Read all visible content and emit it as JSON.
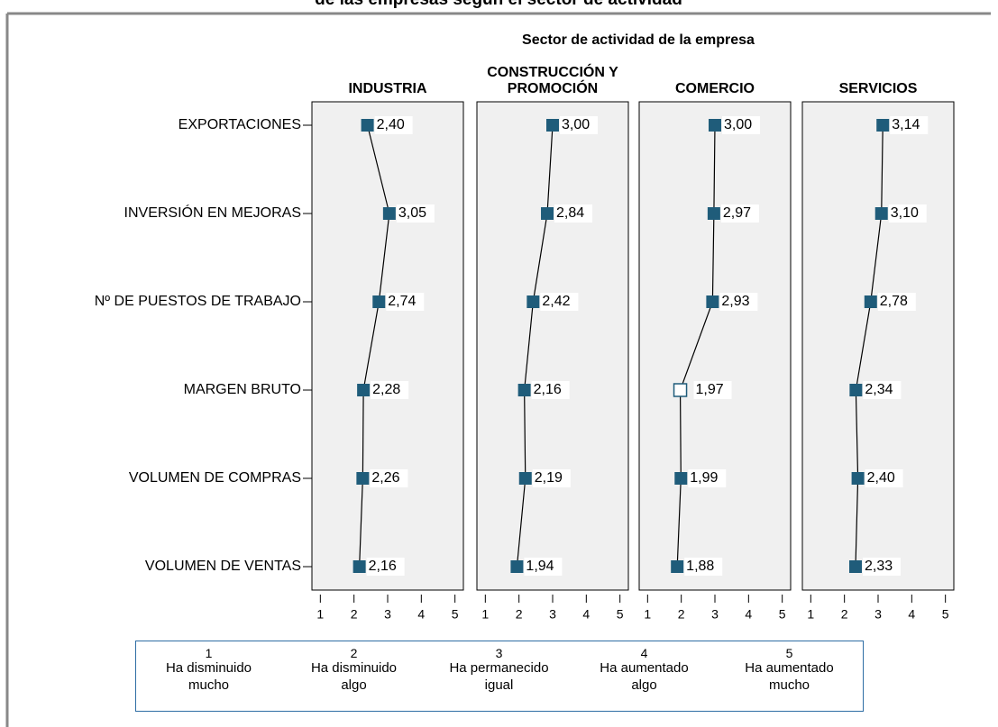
{
  "chart_data": {
    "type": "line",
    "title": "de las empresas según el sector de actividad",
    "subtitle": "Sector de actividad de la empresa",
    "categories": [
      "EXPORTACIONES",
      "INVERSIÓN EN MEJORAS",
      "Nº DE PUESTOS DE TRABAJO",
      "MARGEN BRUTO",
      "VOLUMEN DE COMPRAS",
      "VOLUMEN DE VENTAS"
    ],
    "series": [
      {
        "name": "INDUSTRIA",
        "color": "#1f5c7a",
        "values": [
          2.4,
          3.05,
          2.74,
          2.28,
          2.26,
          2.16
        ],
        "value_labels": [
          "2,40",
          "3,05",
          "2,74",
          "2,28",
          "2,26",
          "2,16"
        ]
      },
      {
        "name": "CONSTRUCCIÓN Y PROMOCIÓN",
        "color": "#1f5c7a",
        "values": [
          3.0,
          2.84,
          2.42,
          2.16,
          2.19,
          1.94
        ],
        "value_labels": [
          "3,00",
          "2,84",
          "2,42",
          "2,16",
          "2,19",
          "1,94"
        ]
      },
      {
        "name": "COMERCIO",
        "color": "#1f5c7a",
        "values": [
          3.0,
          2.97,
          2.93,
          1.97,
          1.99,
          1.88
        ],
        "value_labels": [
          "3,00",
          "2,97",
          "2,93",
          "1,97",
          "1,99",
          "1,88"
        ],
        "open_marker_index": 3
      },
      {
        "name": "SERVICIOS",
        "color": "#1f5c7a",
        "values": [
          3.14,
          3.1,
          2.78,
          2.34,
          2.4,
          2.33
        ],
        "value_labels": [
          "3,14",
          "3,10",
          "2,78",
          "2,34",
          "2,40",
          "2,33"
        ]
      }
    ],
    "xlim": [
      0.75,
      5.25
    ],
    "xticks": [
      1,
      2,
      3,
      4,
      5
    ],
    "scale_legend": [
      {
        "number": "1",
        "text": "Ha disminuido mucho"
      },
      {
        "number": "2",
        "text": "Ha disminuido algo"
      },
      {
        "number": "3",
        "text": "Ha permanecido igual"
      },
      {
        "number": "4",
        "text": "Ha aumentado algo"
      },
      {
        "number": "5",
        "text": "Ha aumentado mucho"
      }
    ]
  }
}
